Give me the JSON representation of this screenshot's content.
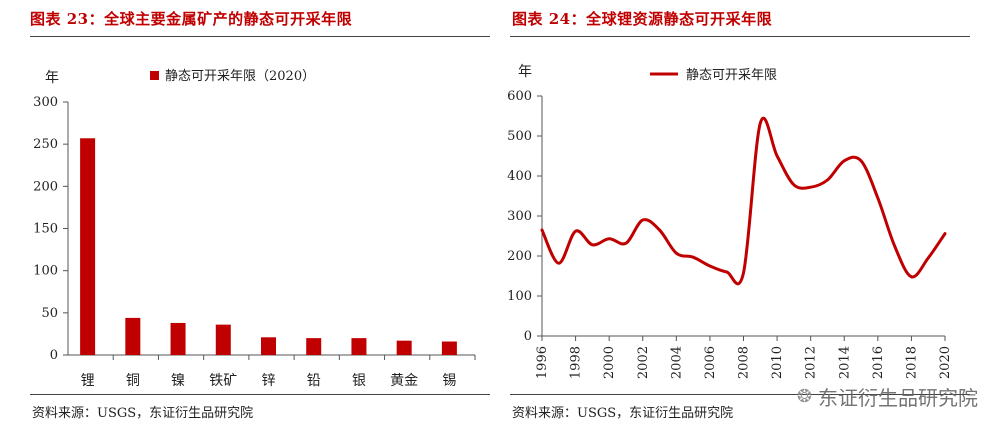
{
  "left": {
    "title": "图表 23：全球主要金属矿产的静态可开采年限",
    "source": "资料来源：USGS，东证衍生品研究院"
  },
  "right": {
    "title": "图表 24：全球锂资源静态可开采年限",
    "source": "资料来源：USGS，东证衍生品研究院"
  },
  "watermark": {
    "text": "东证衍生品研究院",
    "icon": "wechat-icon"
  },
  "chart_data": [
    {
      "type": "bar",
      "ylabel": "年",
      "legend": "静态可开采年限（2020）",
      "legend_position": "top",
      "grid": false,
      "ylim": [
        0,
        300
      ],
      "yticks": [
        0,
        50,
        100,
        150,
        200,
        250,
        300
      ],
      "categories": [
        "锂",
        "铜",
        "镍",
        "铁矿",
        "锌",
        "铅",
        "银",
        "黄金",
        "锡"
      ],
      "series": [
        {
          "name": "静态可开采年限（2020）",
          "values": [
            257,
            44,
            38,
            36,
            21,
            20,
            20,
            17,
            16
          ]
        }
      ],
      "color": "#c00000"
    },
    {
      "type": "line",
      "ylabel": "年",
      "legend": "静态可开采年限",
      "legend_position": "top",
      "grid": false,
      "ylim": [
        0,
        600
      ],
      "yticks": [
        0,
        100,
        200,
        300,
        400,
        500,
        600
      ],
      "xlim": [
        1996,
        2020
      ],
      "xticks": [
        1996,
        1998,
        2000,
        2002,
        2004,
        2006,
        2008,
        2010,
        2012,
        2014,
        2016,
        2018,
        2020
      ],
      "series": [
        {
          "name": "静态可开采年限",
          "x": [
            1996,
            1997,
            1998,
            1999,
            2000,
            2001,
            2002,
            2003,
            2004,
            2005,
            2006,
            2007,
            2008,
            2009,
            2010,
            2011,
            2012,
            2013,
            2014,
            2015,
            2016,
            2017,
            2018,
            2019,
            2020
          ],
          "values": [
            265,
            182,
            262,
            228,
            243,
            232,
            290,
            265,
            207,
            197,
            175,
            160,
            158,
            532,
            450,
            378,
            372,
            390,
            438,
            438,
            345,
            225,
            148,
            195,
            256
          ]
        }
      ],
      "color": "#c00000"
    }
  ]
}
